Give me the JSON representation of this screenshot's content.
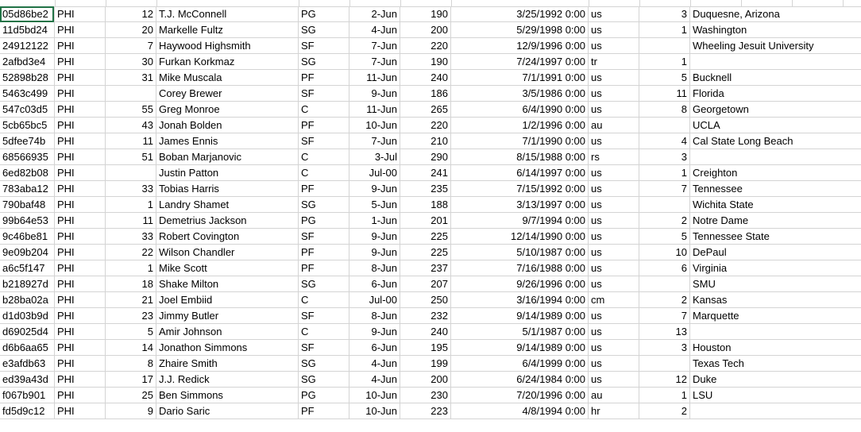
{
  "rows": [
    [
      "05d86be2",
      "PHI",
      "12",
      "T.J. McConnell",
      "PG",
      "2-Jun",
      "190",
      "3/25/1992 0:00",
      "us",
      "3",
      "Duquesne, Arizona"
    ],
    [
      "11d5bd24",
      "PHI",
      "20",
      "Markelle Fultz",
      "SG",
      "4-Jun",
      "200",
      "5/29/1998 0:00",
      "us",
      "1",
      "Washington"
    ],
    [
      "24912122",
      "PHI",
      "7",
      "Haywood Highsmith",
      "SF",
      "7-Jun",
      "220",
      "12/9/1996 0:00",
      "us",
      "",
      "Wheeling Jesuit University"
    ],
    [
      "2afbd3e4",
      "PHI",
      "30",
      "Furkan Korkmaz",
      "SG",
      "7-Jun",
      "190",
      "7/24/1997 0:00",
      "tr",
      "1",
      ""
    ],
    [
      "52898b28",
      "PHI",
      "31",
      "Mike Muscala",
      "PF",
      "11-Jun",
      "240",
      "7/1/1991 0:00",
      "us",
      "5",
      "Bucknell"
    ],
    [
      "5463c499",
      "PHI",
      "",
      "Corey Brewer",
      "SF",
      "9-Jun",
      "186",
      "3/5/1986 0:00",
      "us",
      "11",
      "Florida"
    ],
    [
      "547c03d5",
      "PHI",
      "55",
      "Greg Monroe",
      "C",
      "11-Jun",
      "265",
      "6/4/1990 0:00",
      "us",
      "8",
      "Georgetown"
    ],
    [
      "5cb65bc5",
      "PHI",
      "43",
      "Jonah Bolden",
      "PF",
      "10-Jun",
      "220",
      "1/2/1996 0:00",
      "au",
      "",
      "UCLA"
    ],
    [
      "5dfee74b",
      "PHI",
      "11",
      "James Ennis",
      "SF",
      "7-Jun",
      "210",
      "7/1/1990 0:00",
      "us",
      "4",
      "Cal State Long Beach"
    ],
    [
      "68566935",
      "PHI",
      "51",
      "Boban Marjanovic",
      "C",
      "3-Jul",
      "290",
      "8/15/1988 0:00",
      "rs",
      "3",
      ""
    ],
    [
      "6ed82b08",
      "PHI",
      "",
      "Justin Patton",
      "C",
      "Jul-00",
      "241",
      "6/14/1997 0:00",
      "us",
      "1",
      "Creighton"
    ],
    [
      "783aba12",
      "PHI",
      "33",
      "Tobias Harris",
      "PF",
      "9-Jun",
      "235",
      "7/15/1992 0:00",
      "us",
      "7",
      "Tennessee"
    ],
    [
      "790baf48",
      "PHI",
      "1",
      "Landry Shamet",
      "SG",
      "5-Jun",
      "188",
      "3/13/1997 0:00",
      "us",
      "",
      "Wichita State"
    ],
    [
      "99b64e53",
      "PHI",
      "11",
      "Demetrius Jackson",
      "PG",
      "1-Jun",
      "201",
      "9/7/1994 0:00",
      "us",
      "2",
      "Notre Dame"
    ],
    [
      "9c46be81",
      "PHI",
      "33",
      "Robert Covington",
      "SF",
      "9-Jun",
      "225",
      "12/14/1990 0:00",
      "us",
      "5",
      "Tennessee State"
    ],
    [
      "9e09b204",
      "PHI",
      "22",
      "Wilson Chandler",
      "PF",
      "9-Jun",
      "225",
      "5/10/1987 0:00",
      "us",
      "10",
      "DePaul"
    ],
    [
      "a6c5f147",
      "PHI",
      "1",
      "Mike Scott",
      "PF",
      "8-Jun",
      "237",
      "7/16/1988 0:00",
      "us",
      "6",
      "Virginia"
    ],
    [
      "b218927d",
      "PHI",
      "18",
      "Shake Milton",
      "SG",
      "6-Jun",
      "207",
      "9/26/1996 0:00",
      "us",
      "",
      "SMU"
    ],
    [
      "b28ba02a",
      "PHI",
      "21",
      "Joel Embiid",
      "C",
      "Jul-00",
      "250",
      "3/16/1994 0:00",
      "cm",
      "2",
      "Kansas"
    ],
    [
      "d1d03b9d",
      "PHI",
      "23",
      "Jimmy Butler",
      "SF",
      "8-Jun",
      "232",
      "9/14/1989 0:00",
      "us",
      "7",
      "Marquette"
    ],
    [
      "d69025d4",
      "PHI",
      "5",
      "Amir Johnson",
      "C",
      "9-Jun",
      "240",
      "5/1/1987 0:00",
      "us",
      "13",
      ""
    ],
    [
      "d6b6aa65",
      "PHI",
      "14",
      "Jonathon Simmons",
      "SF",
      "6-Jun",
      "195",
      "9/14/1989 0:00",
      "us",
      "3",
      "Houston"
    ],
    [
      "e3afdb63",
      "PHI",
      "8",
      "Zhaire Smith",
      "SG",
      "4-Jun",
      "199",
      "6/4/1999 0:00",
      "us",
      "",
      "Texas Tech"
    ],
    [
      "ed39a43d",
      "PHI",
      "17",
      "J.J. Redick",
      "SG",
      "4-Jun",
      "200",
      "6/24/1984 0:00",
      "us",
      "12",
      "Duke"
    ],
    [
      "f067b901",
      "PHI",
      "25",
      "Ben Simmons",
      "PG",
      "10-Jun",
      "230",
      "7/20/1996 0:00",
      "au",
      "1",
      "LSU"
    ],
    [
      "fd5d9c12",
      "PHI",
      "9",
      "Dario Saric",
      "PF",
      "10-Jun",
      "223",
      "4/8/1994 0:00",
      "hr",
      "2",
      ""
    ]
  ]
}
